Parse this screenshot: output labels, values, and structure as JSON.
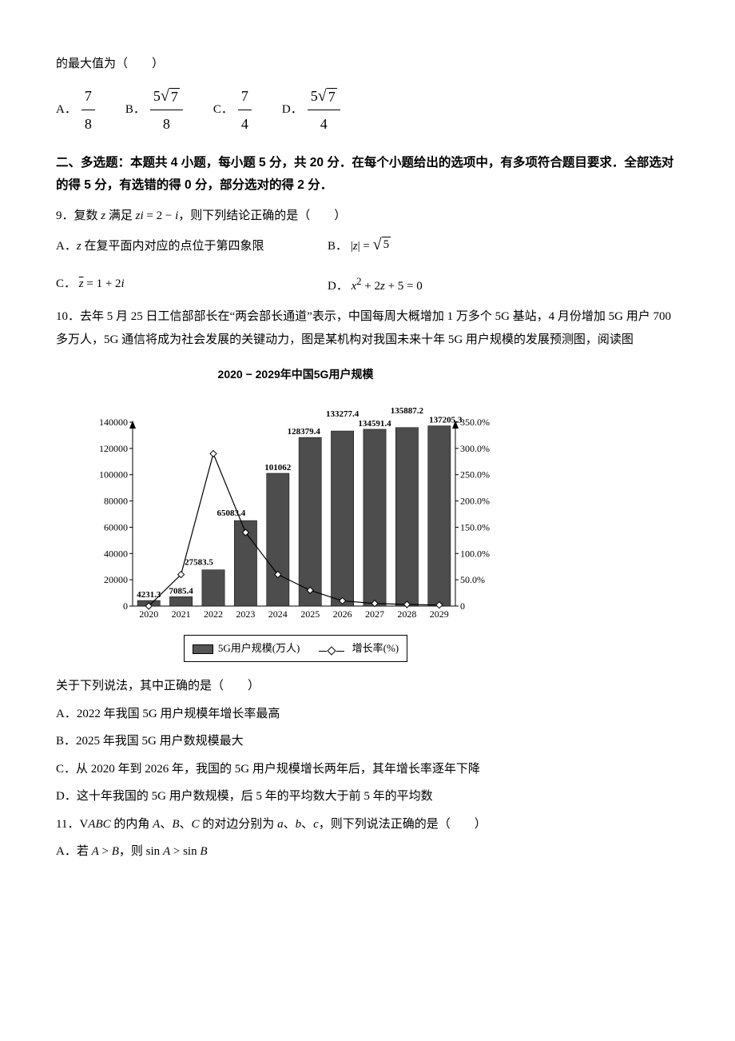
{
  "q8": {
    "stem_tail": "的最大值为（　　）",
    "opts": {
      "A": {
        "num": "7",
        "den": "8"
      },
      "B": {
        "num_html": "5√7",
        "num5": "5",
        "numrad": "7",
        "den": "8"
      },
      "C": {
        "num": "7",
        "den": "4"
      },
      "D": {
        "num5": "5",
        "numrad": "7",
        "den": "4"
      }
    }
  },
  "section2": "二、多选题：本题共 4 小题，每小题 5 分，共 20 分．在每个小题给出的选项中，有多项符合题目要求．全部选对的得 5 分，有选错的得 0 分，部分选对的得 2 分．",
  "q9": {
    "stem_pre": "9．复数 ",
    "stem_mid1": " 满足 ",
    "eq": "zi = 2 − i",
    "stem_tail": "，则下列结论正确的是（　　）",
    "A": "A．z 在复平面内对应的点位于第四象限",
    "B_lbl": "B．",
    "B_eq_lhs": "|z|",
    "B_eq_eq": " = ",
    "B_rad": "5",
    "C_lbl": "C．",
    "C_eq": "z̄ = 1 + 2i",
    "D_lbl": "D．",
    "D_eq": "x² + 2z + 5 = 0"
  },
  "q10": {
    "stem": "10．去年 5 月 25 日工信部部长在“两会部长通道”表示，中国每周大概增加 1 万多个 5G 基站，4 月份增加 5G 用户 700 多万人，5G 通信将成为社会发展的关键动力，图是某机构对我国未来十年 5G 用户规模的发展预测图，阅读图",
    "chart": {
      "title": "2020 − 2029年中国5G用户规模",
      "years": [
        "2020",
        "2021",
        "2022",
        "2023",
        "2024",
        "2025",
        "2026",
        "2027",
        "2028",
        "2029"
      ],
      "bars": [
        4231.3,
        7085.4,
        27583.5,
        65083.4,
        101062,
        128379.4,
        133277.4,
        134591.4,
        135887.2,
        137205.3
      ],
      "bar_labels": [
        "4231.3",
        "7085.4",
        "27583.5",
        "65083.4",
        "101062",
        "128379.4",
        "133277.4",
        "134591.4",
        "135887.2",
        "137205.3"
      ],
      "line_pct": [
        0,
        60,
        290,
        140,
        60,
        30,
        10,
        5,
        3,
        2
      ],
      "y_left_ticks": [
        0,
        20000,
        40000,
        60000,
        80000,
        100000,
        120000,
        140000
      ],
      "y_right_ticks": [
        0,
        50.0,
        100.0,
        150.0,
        200.0,
        250.0,
        300.0,
        350.0
      ],
      "y_right_labels": [
        "0",
        "50.0%",
        "100.0%",
        "150.0%",
        "200.0%",
        "250.0%",
        "300.0%",
        "350.0%"
      ],
      "bar_color": "#4d4d4d",
      "line_color": "#000000",
      "legend_bar": "5G用户规模(万人)",
      "legend_line": "增长率(%)"
    },
    "stem2": "关于下列说法，其中正确的是（　　）",
    "A": "A．2022 年我国 5G 用户规模年增长率最高",
    "B": "B．2025 年我国 5G 用户数规模最大",
    "C": "C．从 2020 年到 2026 年，我国的 5G 用户规模增长两年后，其年增长率逐年下降",
    "D": "D．这十年我国的 5G 用户数规模，后 5 年的平均数大于前 5 年的平均数"
  },
  "q11": {
    "stem_pre": "11．",
    "stem_tri": "△ABC",
    "stem_mid": " 的内角 A、B、C 的对边分别为 a、b、c，则下列说法正确的是（　　）",
    "A_pre": "A．若 ",
    "A_ineq1": "A > B",
    "A_mid": "，则 ",
    "A_ineq2": "sin A > sin B"
  }
}
